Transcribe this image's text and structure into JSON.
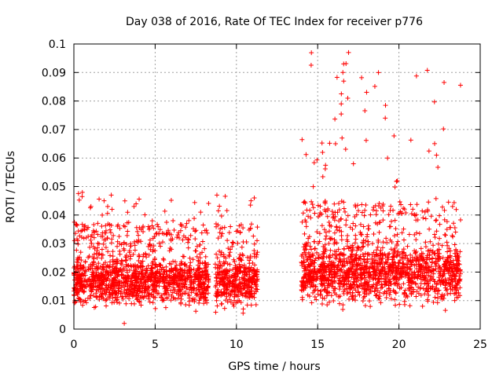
{
  "chart_data": {
    "type": "scatter",
    "title": "Day 038 of 2016, Rate Of TEC Index for receiver p776",
    "xlabel": "GPS time / hours",
    "ylabel": "ROTI / TECUs",
    "xlim": [
      0,
      25
    ],
    "ylim": [
      0,
      0.1
    ],
    "grid": true,
    "marker": "+",
    "x_ticks": [
      0,
      5,
      10,
      15,
      20,
      25
    ],
    "x_tick_labels": [
      "0",
      "5",
      "10",
      "15",
      "20",
      "25"
    ],
    "y_ticks": [
      0,
      0.01,
      0.02,
      0.03,
      0.04,
      0.05,
      0.06,
      0.07,
      0.08,
      0.09,
      0.1
    ],
    "y_tick_labels": [
      "0",
      "0.01",
      "0.02",
      "0.03",
      "0.04",
      "0.05",
      "0.06",
      "0.07",
      "0.08",
      "0.09",
      "0.1"
    ],
    "series": [
      {
        "name": "ROTI",
        "color": "#ff0000",
        "segments": [
          {
            "x_start": 0.0,
            "x_end": 8.3,
            "typical_range": [
              0.005,
              0.025
            ],
            "max": 0.048
          },
          {
            "x_start": 8.7,
            "x_end": 11.3,
            "typical_range": [
              0.005,
              0.025
            ],
            "max": 0.048
          },
          {
            "x_start": 14.0,
            "x_end": 23.8,
            "typical_range": [
              0.005,
              0.03
            ],
            "max": 0.097
          }
        ],
        "notable_points": [
          {
            "x": 1.05,
            "y": 0.043
          },
          {
            "x": 2.3,
            "y": 0.047
          },
          {
            "x": 2.35,
            "y": 0.042
          },
          {
            "x": 3.7,
            "y": 0.043
          },
          {
            "x": 3.1,
            "y": 0.002
          },
          {
            "x": 6.1,
            "y": 0.038
          },
          {
            "x": 7.8,
            "y": 0.041
          },
          {
            "x": 8.8,
            "y": 0.047
          },
          {
            "x": 10.9,
            "y": 0.045
          },
          {
            "x": 11.1,
            "y": 0.046
          },
          {
            "x": 15.3,
            "y": 0.062
          },
          {
            "x": 16.1,
            "y": 0.065
          },
          {
            "x": 16.5,
            "y": 0.067
          },
          {
            "x": 16.45,
            "y": 0.079
          },
          {
            "x": 16.6,
            "y": 0.087
          },
          {
            "x": 16.55,
            "y": 0.09
          },
          {
            "x": 16.6,
            "y": 0.093
          },
          {
            "x": 16.85,
            "y": 0.081
          },
          {
            "x": 16.9,
            "y": 0.097
          },
          {
            "x": 17.2,
            "y": 0.058
          },
          {
            "x": 19.3,
            "y": 0.06
          },
          {
            "x": 19.9,
            "y": 0.052
          },
          {
            "x": 23.3,
            "y": 0.043
          }
        ]
      }
    ]
  }
}
